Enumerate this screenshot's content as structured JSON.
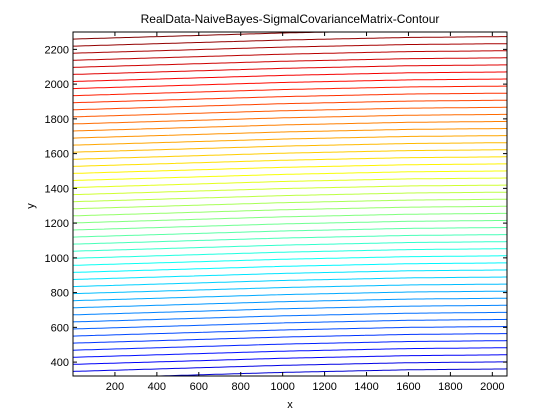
{
  "chart_data": {
    "type": "contour",
    "title": "RealData-NaiveBayes-SigmalCovarianceMatrix-Contour",
    "xlabel": "x",
    "ylabel": "y",
    "xlim": [
      0,
      2070
    ],
    "ylim": [
      320,
      2300
    ],
    "xticks": [
      200,
      400,
      600,
      800,
      1000,
      1200,
      1400,
      1600,
      1800,
      2000
    ],
    "yticks": [
      400,
      600,
      800,
      1000,
      1200,
      1400,
      1600,
      1800,
      2000,
      2200
    ],
    "grid": false,
    "legend": "none",
    "colormap": "jet",
    "level_count": 49,
    "boundary": {
      "upper_side_slope": -0.19,
      "lower_side_slope": -0.72,
      "kink_line": [
        [
          0,
          1495
        ],
        [
          1000,
          1530
        ],
        [
          1600,
          1545
        ],
        [
          2070,
          1550
        ]
      ]
    },
    "colors": {
      "background": "#ffffff",
      "axes": "#000000"
    }
  }
}
